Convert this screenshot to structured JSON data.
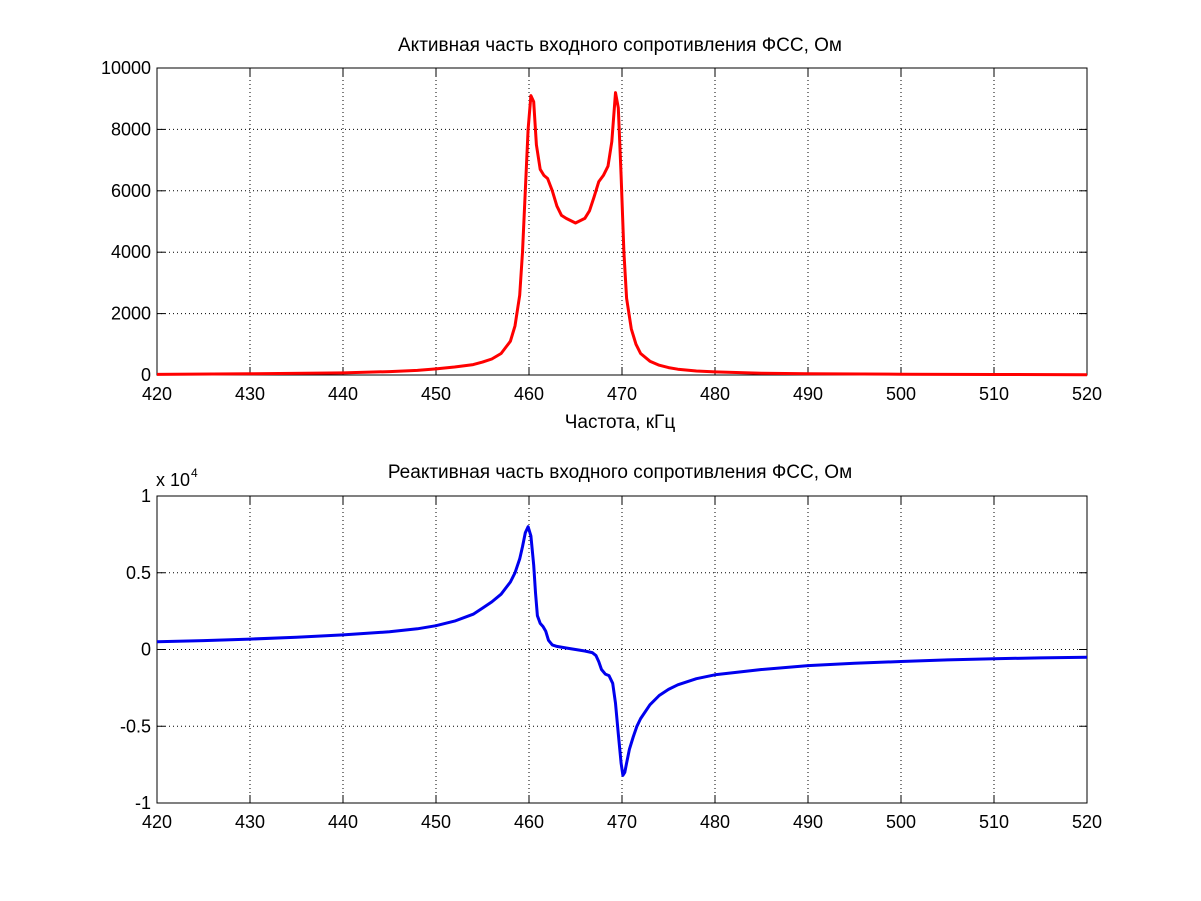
{
  "chart_data": [
    {
      "type": "line",
      "title": "Активная часть входного сопротивления ФСС, Ом",
      "xlabel": "Частота, кГц",
      "ylabel": "",
      "xlim": [
        420,
        520
      ],
      "ylim": [
        0,
        10000
      ],
      "x_ticks": [
        420,
        430,
        440,
        450,
        460,
        470,
        480,
        490,
        500,
        510,
        520
      ],
      "y_ticks": [
        0,
        2000,
        4000,
        6000,
        8000,
        10000
      ],
      "x_tick_labels": [
        "420",
        "430",
        "440",
        "450",
        "460",
        "470",
        "480",
        "490",
        "500",
        "510",
        "520"
      ],
      "y_tick_labels": [
        "0",
        "2000",
        "4000",
        "6000",
        "8000",
        "10000"
      ],
      "grid": true,
      "color": "#ff0000",
      "series": [
        {
          "x": [
            420,
            430,
            440,
            445,
            448,
            450,
            452,
            454,
            455,
            456,
            457,
            458,
            458.5,
            459,
            459.3,
            459.6,
            459.9,
            460.2,
            460.5,
            460.8,
            461.2,
            461.6,
            462,
            462.5,
            463,
            463.5,
            464,
            465,
            466,
            466.5,
            467,
            467.5,
            468,
            468.5,
            468.9,
            469.3,
            469.6,
            469.9,
            470.2,
            470.5,
            471,
            471.5,
            472,
            473,
            474,
            475,
            476,
            478,
            480,
            485,
            490,
            500,
            510,
            520
          ],
          "y": [
            20,
            40,
            70,
            110,
            150,
            200,
            260,
            340,
            420,
            520,
            700,
            1100,
            1600,
            2600,
            4000,
            6000,
            8000,
            9100,
            8900,
            7500,
            6700,
            6500,
            6400,
            6000,
            5500,
            5200,
            5100,
            4950,
            5100,
            5350,
            5800,
            6300,
            6500,
            6800,
            7600,
            9200,
            8700,
            6500,
            4000,
            2500,
            1500,
            1000,
            700,
            450,
            320,
            240,
            190,
            130,
            100,
            60,
            40,
            25,
            15,
            10
          ]
        }
      ]
    },
    {
      "type": "line",
      "title": "Реактивная часть входного сопротивления ФСС, Ом",
      "xlabel": "",
      "ylabel": "",
      "y_multiplier": "x 10",
      "y_multiplier_exp": "4",
      "xlim": [
        420,
        520
      ],
      "ylim": [
        -1,
        1
      ],
      "x_ticks": [
        420,
        430,
        440,
        450,
        460,
        470,
        480,
        490,
        500,
        510,
        520
      ],
      "y_ticks": [
        -1,
        -0.5,
        0,
        0.5,
        1
      ],
      "x_tick_labels": [
        "420",
        "430",
        "440",
        "450",
        "460",
        "470",
        "480",
        "490",
        "500",
        "510",
        "520"
      ],
      "y_tick_labels": [
        "-1",
        "-0.5",
        "0",
        "0.5",
        "1"
      ],
      "grid": true,
      "color": "#0000ee",
      "series": [
        {
          "x": [
            420,
            425,
            430,
            435,
            440,
            445,
            448,
            450,
            452,
            454,
            455,
            456,
            457,
            458,
            458.5,
            459,
            459.3,
            459.6,
            459.9,
            460.2,
            460.5,
            460.7,
            460.9,
            461.2,
            461.5,
            461.8,
            462.1,
            462.5,
            463,
            464,
            465,
            466,
            466.8,
            467.2,
            467.5,
            467.8,
            468.2,
            468.6,
            469,
            469.3,
            469.6,
            469.9,
            470.1,
            470.3,
            470.5,
            470.8,
            471.2,
            471.6,
            472,
            473,
            474,
            475,
            476,
            478,
            480,
            485,
            490,
            495,
            500,
            505,
            510,
            515,
            520
          ],
          "y": [
            0.05,
            0.058,
            0.068,
            0.08,
            0.095,
            0.115,
            0.135,
            0.155,
            0.185,
            0.23,
            0.27,
            0.31,
            0.36,
            0.44,
            0.5,
            0.59,
            0.67,
            0.76,
            0.8,
            0.74,
            0.55,
            0.37,
            0.22,
            0.17,
            0.15,
            0.12,
            0.06,
            0.03,
            0.02,
            0.01,
            0.0,
            -0.01,
            -0.02,
            -0.04,
            -0.08,
            -0.13,
            -0.16,
            -0.17,
            -0.22,
            -0.35,
            -0.55,
            -0.74,
            -0.82,
            -0.8,
            -0.74,
            -0.65,
            -0.57,
            -0.5,
            -0.45,
            -0.36,
            -0.3,
            -0.26,
            -0.23,
            -0.19,
            -0.165,
            -0.13,
            -0.105,
            -0.09,
            -0.078,
            -0.068,
            -0.06,
            -0.055,
            -0.05
          ]
        }
      ]
    }
  ]
}
